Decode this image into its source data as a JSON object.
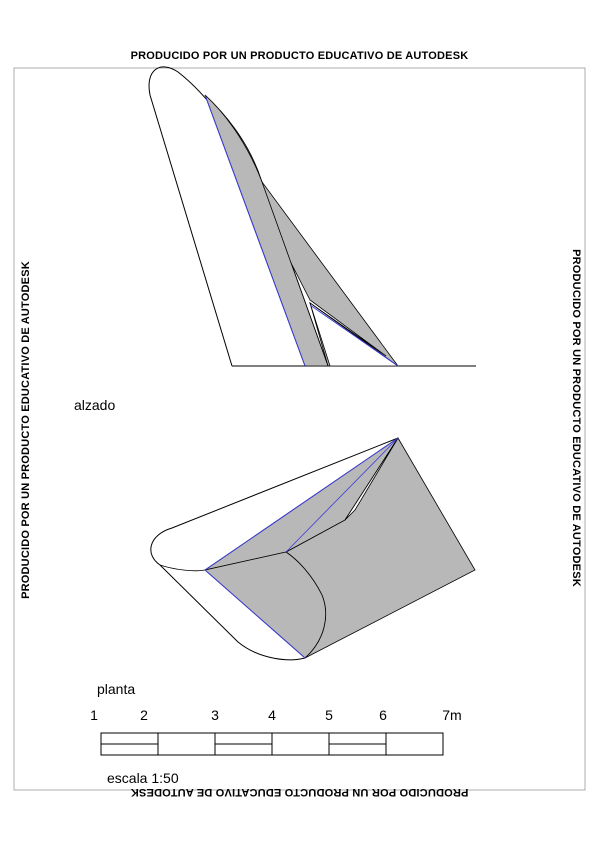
{
  "watermark": {
    "top": "PRODUCIDO POR UN PRODUCTO EDUCATIVO DE AUTODESK",
    "bottom": "PRODUCIDO POR UN PRODUCTO EDUCATIVO DE AUTODESK",
    "left": "PRODUCIDO POR UN PRODUCTO EDUCATIVO DE AUTODESK",
    "right": "PRODUCIDO POR UN PRODUCTO EDUCATIVO DE AUTODESK"
  },
  "views": {
    "elevation_label": "alzado",
    "plan_label": "planta"
  },
  "scale_bar": {
    "ticks": [
      "1",
      "2",
      "3",
      "4",
      "5",
      "6",
      "7m"
    ],
    "caption": "escala 1:50"
  },
  "colors": {
    "shade": "#b8b8b8",
    "edge": "#000000",
    "hidden_edge": "#3b3bd6",
    "frame": "#999999"
  }
}
